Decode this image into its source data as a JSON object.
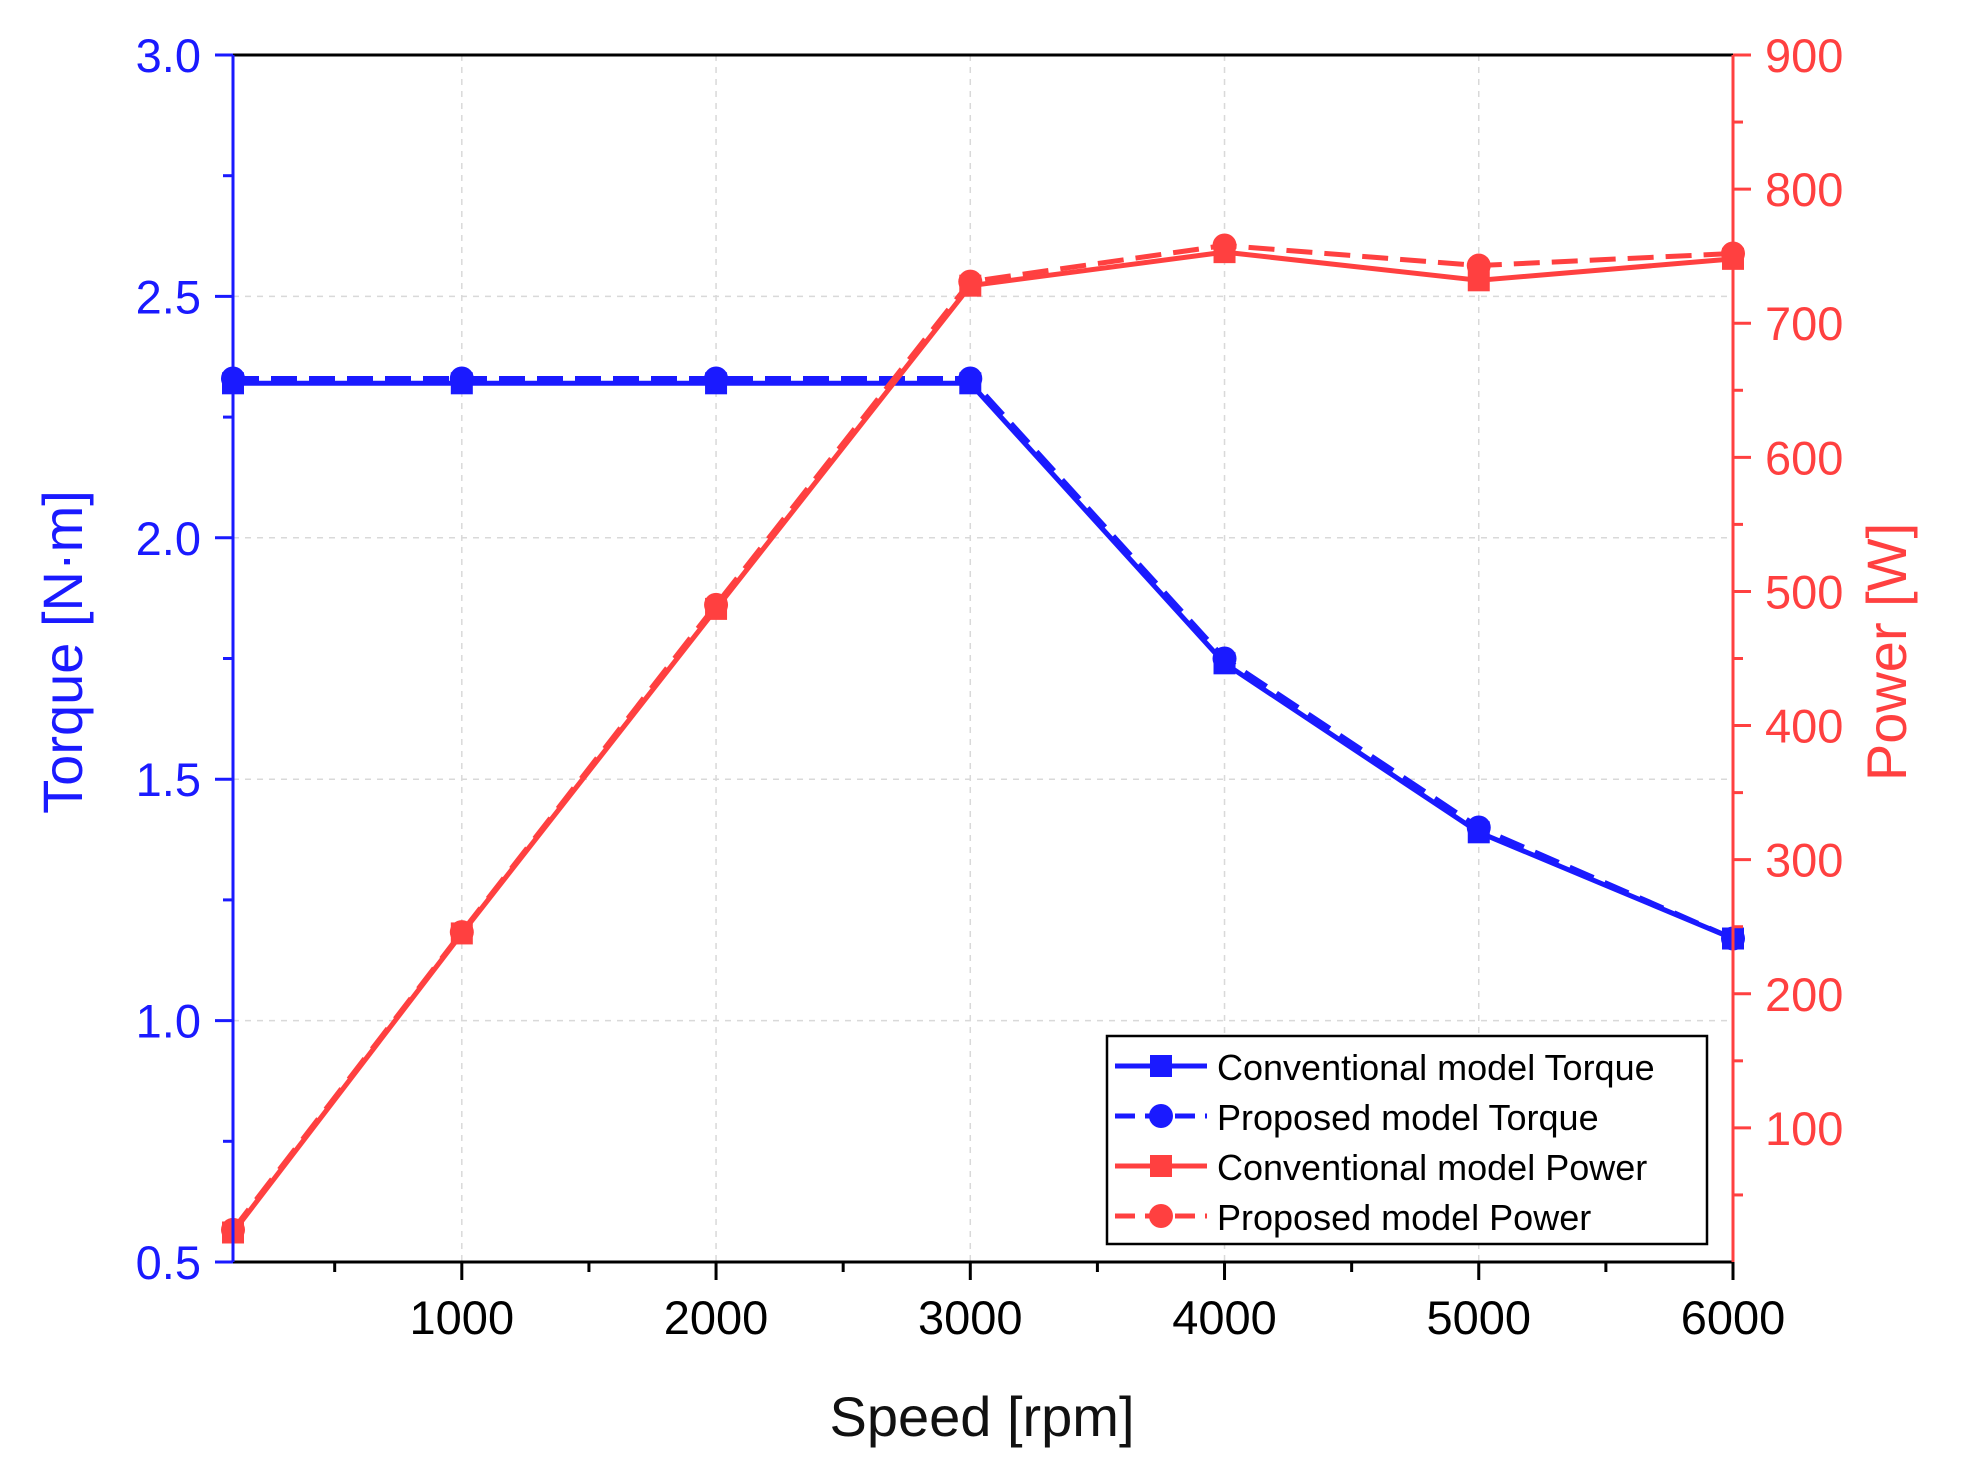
{
  "chart_data": {
    "type": "line",
    "xlabel": "Speed [rpm]",
    "ylabel_left": "Torque [N·m]",
    "ylabel_right": "Power [W]",
    "xlim": [
      100,
      6000
    ],
    "ylim_left": [
      0.5,
      3.0
    ],
    "ylim_right": [
      0,
      900
    ],
    "x_ticks": [
      1000,
      2000,
      3000,
      4000,
      5000,
      6000
    ],
    "x_tick_labels": [
      "1000",
      "2000",
      "3000",
      "4000",
      "5000",
      "6000"
    ],
    "left_ticks": [
      0.5,
      1.0,
      1.5,
      2.0,
      2.5,
      3.0
    ],
    "left_tick_labels": [
      "0.5",
      "1.0",
      "1.5",
      "2.0",
      "2.5",
      "3.0"
    ],
    "right_ticks": [
      100,
      200,
      300,
      400,
      500,
      600,
      700,
      800,
      900
    ],
    "right_tick_labels": [
      "100",
      "200",
      "300",
      "400",
      "500",
      "600",
      "700",
      "800",
      "900"
    ],
    "grid": true,
    "legend_position": "bottom-right",
    "colors": {
      "torque": "#1a1aff",
      "power": "#ff4040"
    },
    "series": [
      {
        "name": "Conventional model Torque",
        "axis": "left",
        "color": "#1a1aff",
        "dash": "solid",
        "marker": "square",
        "x": [
          100,
          1000,
          2000,
          3000,
          4000,
          5000,
          6000
        ],
        "y": [
          2.32,
          2.32,
          2.32,
          2.32,
          1.74,
          1.39,
          1.17
        ]
      },
      {
        "name": "Proposed model Torque",
        "axis": "left",
        "color": "#1a1aff",
        "dash": "dashed",
        "marker": "circle",
        "x": [
          100,
          1000,
          2000,
          3000,
          4000,
          5000,
          6000
        ],
        "y": [
          2.33,
          2.33,
          2.33,
          2.33,
          1.75,
          1.4,
          1.17
        ]
      },
      {
        "name": "Conventional model Power",
        "axis": "right",
        "color": "#ff4040",
        "dash": "solid",
        "marker": "square",
        "x": [
          100,
          1000,
          2000,
          3000,
          4000,
          5000,
          6000
        ],
        "y": [
          22,
          245,
          487,
          728,
          753,
          732,
          748
        ]
      },
      {
        "name": "Proposed model Power",
        "axis": "right",
        "color": "#ff4040",
        "dash": "dashed",
        "marker": "circle",
        "x": [
          100,
          1000,
          2000,
          3000,
          4000,
          5000,
          6000
        ],
        "y": [
          24,
          246,
          490,
          731,
          758,
          743,
          752
        ]
      }
    ]
  }
}
